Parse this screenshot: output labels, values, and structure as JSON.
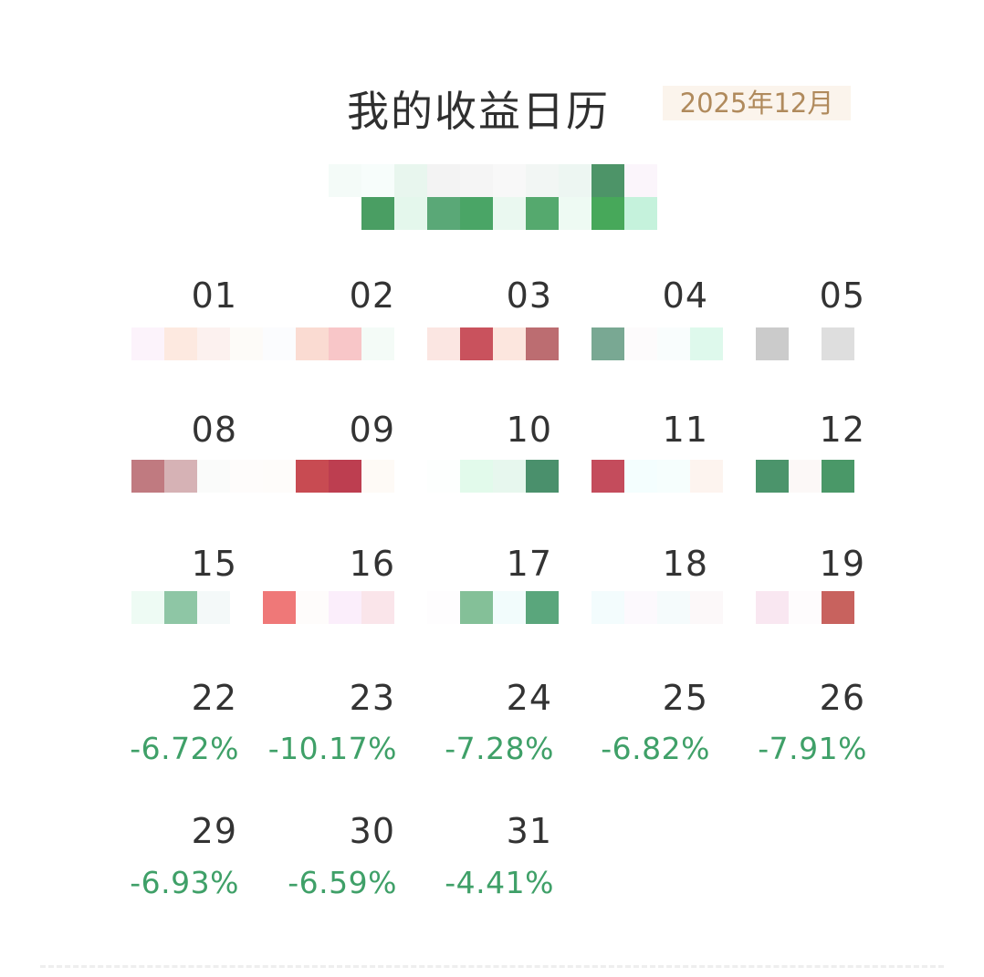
{
  "header": {
    "title": "我的收益日历",
    "month": "2025年12月"
  },
  "colors": {
    "gain": "#c94a55",
    "loss": "#3fa068",
    "badge_bg": "#fbf4ec",
    "badge_text": "#b08a5c"
  },
  "calendar": {
    "days": [
      {
        "day": "01",
        "value": ""
      },
      {
        "day": "02",
        "value": ""
      },
      {
        "day": "03",
        "value": ""
      },
      {
        "day": "04",
        "value": ""
      },
      {
        "day": "05",
        "value": ""
      },
      {
        "day": "08",
        "value": ""
      },
      {
        "day": "09",
        "value": ""
      },
      {
        "day": "10",
        "value": ""
      },
      {
        "day": "11",
        "value": ""
      },
      {
        "day": "12",
        "value": ""
      },
      {
        "day": "15",
        "value": ""
      },
      {
        "day": "16",
        "value": ""
      },
      {
        "day": "17",
        "value": ""
      },
      {
        "day": "18",
        "value": ""
      },
      {
        "day": "19",
        "value": ""
      },
      {
        "day": "22",
        "value": "-6.72%"
      },
      {
        "day": "23",
        "value": "-10.17%"
      },
      {
        "day": "24",
        "value": "-7.28%"
      },
      {
        "day": "25",
        "value": "-6.82%"
      },
      {
        "day": "26",
        "value": "-7.91%"
      },
      {
        "day": "29",
        "value": "-6.93%"
      },
      {
        "day": "30",
        "value": "-6.59%"
      },
      {
        "day": "31",
        "value": "-4.41%"
      }
    ]
  }
}
